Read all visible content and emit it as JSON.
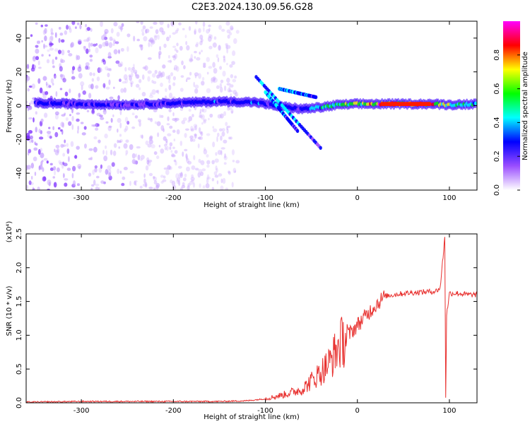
{
  "figure_title": "C2E3.2024.130.09.56.G28",
  "chart_data": [
    {
      "type": "heatmap",
      "title": "C2E3.2024.130.09.56.G28",
      "xlabel": "Height of straight line (km)",
      "ylabel": "Frequency (Hz)",
      "xlim": [
        -360,
        130
      ],
      "ylim": [
        -50,
        50
      ],
      "x_ticks": [
        -300,
        -200,
        -100,
        0,
        100
      ],
      "y_ticks": [
        -40,
        -20,
        0,
        20,
        40
      ],
      "colorbar": {
        "label": "Normalized spectral amplitude",
        "range": [
          0,
          1
        ],
        "ticks": [
          0.0,
          0.2,
          0.4,
          0.6,
          0.8
        ],
        "colors": [
          "#ffffff",
          "#9a4dff",
          "#0000ff",
          "#00ffff",
          "#00ff00",
          "#ffff00",
          "#ff0000",
          "#ff00ff"
        ]
      },
      "ridge": [
        {
          "x": -350,
          "y": 1.5,
          "amp": 0.3
        },
        {
          "x": -300,
          "y": 1.0,
          "amp": 0.28
        },
        {
          "x": -250,
          "y": 0.5,
          "amp": 0.22
        },
        {
          "x": -200,
          "y": 1.5,
          "amp": 0.3
        },
        {
          "x": -150,
          "y": 2.5,
          "amp": 0.33
        },
        {
          "x": -110,
          "y": 2.0,
          "amp": 0.35
        },
        {
          "x": -90,
          "y": 0.0,
          "amp": 0.3
        },
        {
          "x": -60,
          "y": -2.0,
          "amp": 0.3
        },
        {
          "x": -40,
          "y": -1.0,
          "amp": 0.55
        },
        {
          "x": -20,
          "y": 0.5,
          "amp": 0.6
        },
        {
          "x": 0,
          "y": 1.0,
          "amp": 0.7
        },
        {
          "x": 30,
          "y": 1.0,
          "amp": 0.9
        },
        {
          "x": 80,
          "y": 1.0,
          "amp": 0.9
        },
        {
          "x": 100,
          "y": 0.5,
          "amp": 0.6
        },
        {
          "x": 130,
          "y": 1.0,
          "amp": 0.55
        }
      ],
      "branches": [
        {
          "from": [
            -110,
            17
          ],
          "to": [
            -40,
            -25
          ]
        },
        {
          "from": [
            -100,
            8
          ],
          "to": [
            -65,
            -15
          ]
        },
        {
          "from": [
            -85,
            10
          ],
          "to": [
            -45,
            5
          ]
        }
      ],
      "scatter_extent_x": [
        -360,
        -130
      ]
    },
    {
      "type": "line",
      "xlabel": "Height of straight line (km)",
      "ylabel": "SNR (10 * v/v)",
      "y_multiplier": "(x10⁴)",
      "xlim": [
        -360,
        130
      ],
      "ylim": [
        0,
        2.5
      ],
      "x_ticks": [
        -300,
        -200,
        -100,
        0,
        100
      ],
      "y_ticks": [
        0.0,
        0.5,
        1.0,
        1.5,
        2.0,
        2.5
      ],
      "series": [
        {
          "color": "#e8312f",
          "x": [
            -360,
            -300,
            -250,
            -200,
            -150,
            -120,
            -100,
            -80,
            -60,
            -40,
            -30,
            -20,
            -10,
            0,
            10,
            20,
            30,
            50,
            70,
            85,
            90,
            95,
            96,
            97,
            100,
            110,
            120,
            130
          ],
          "y": [
            0.01,
            0.02,
            0.02,
            0.02,
            0.02,
            0.03,
            0.06,
            0.12,
            0.2,
            0.45,
            0.6,
            0.85,
            1.0,
            1.15,
            1.3,
            1.45,
            1.58,
            1.62,
            1.64,
            1.65,
            1.7,
            2.45,
            0.1,
            1.3,
            1.62,
            1.62,
            1.6,
            1.6
          ]
        }
      ]
    }
  ]
}
